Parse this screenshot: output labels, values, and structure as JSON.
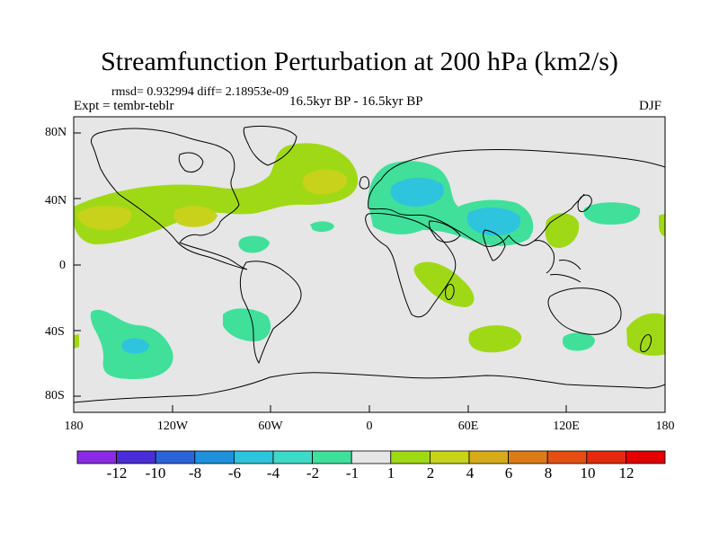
{
  "title": "Streamfunction Perturbation at 200 hPa (km2/s)",
  "stats": "rmsd= 0.932994 diff= 2.18953e-09",
  "experiment": "Expt = tembr-teblr",
  "period": "16.5kyr BP - 16.5kyr BP",
  "season": "DJF",
  "lat_labels": [
    "80N",
    "40N",
    "0",
    "40S",
    "80S"
  ],
  "lon_labels": [
    "180",
    "120W",
    "60W",
    "0",
    "60E",
    "120E",
    "180"
  ],
  "colorbar": {
    "labels": [
      "-12",
      "-10",
      "-8",
      "-6",
      "-4",
      "-2",
      "-1",
      "1",
      "2",
      "4",
      "6",
      "8",
      "10",
      "12"
    ],
    "colors": [
      "#8a2be2",
      "#4b2dd6",
      "#2b63d8",
      "#1e90dd",
      "#2ec4dd",
      "#3fd9c8",
      "#40e09a",
      "#e6e6e6",
      "#9fd916",
      "#c8d21a",
      "#d7a91c",
      "#de7a16",
      "#e35010",
      "#e22a0c",
      "#e00000"
    ]
  },
  "map_colors": {
    "background": "#e6e6e6",
    "green_pos": "#9fd916",
    "yellow_pos": "#c8d21a",
    "teal_neg": "#40e09a",
    "cyan_neg": "#3fd9c8",
    "cyan_deep": "#2ec4dd",
    "coast": "#000000"
  }
}
